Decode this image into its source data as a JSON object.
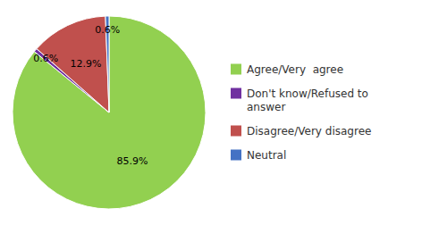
{
  "chart_data": {
    "type": "pie",
    "categories": [
      "Agree/Very  agree",
      "Don't know/Refused to\nanswer",
      "Disagree/Very disagree",
      "Neutral"
    ],
    "values": [
      85.9,
      0.6,
      12.9,
      0.6
    ],
    "value_labels": [
      "85.9%",
      "0.6%",
      "12.9%",
      "0.6%"
    ],
    "colors": [
      "#92d050",
      "#7030a0",
      "#c0504d",
      "#4472c4"
    ],
    "data_labels": true,
    "legend": "right"
  }
}
